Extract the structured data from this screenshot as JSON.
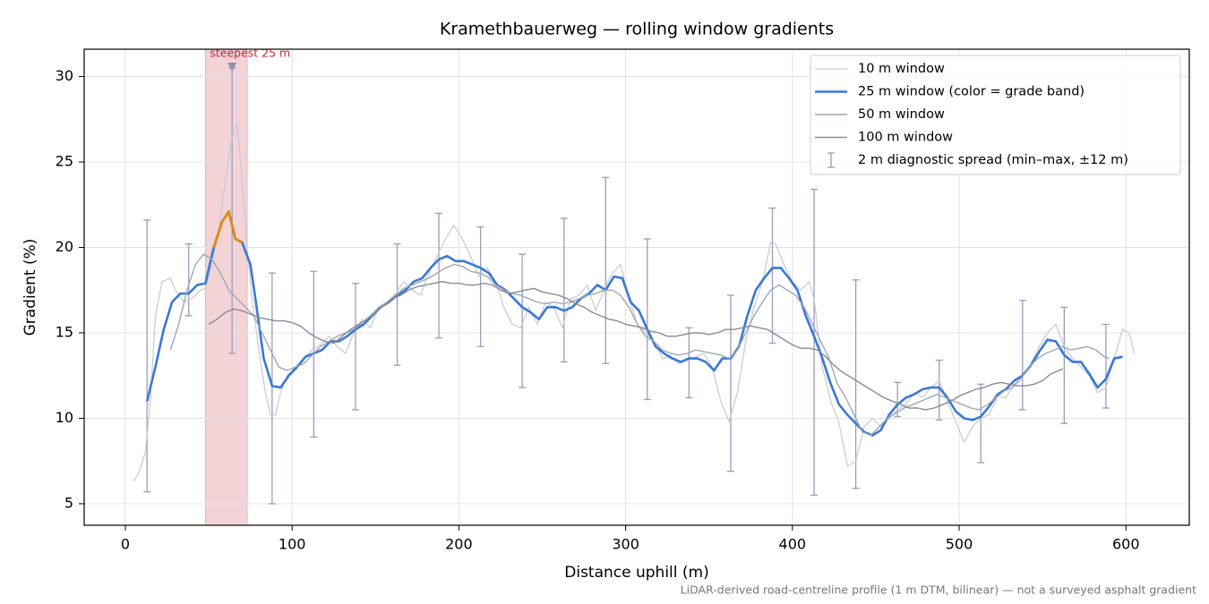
{
  "chart_data": {
    "type": "line",
    "title": "Kramethbauerweg — rolling window gradients",
    "x_label": "Distance uphill (m)",
    "y_label": "Gradient (%)",
    "footnote": "LiDAR-derived road-centreline profile (1 m DTM, bilinear) — not a surveyed asphalt gradient",
    "xlim": [
      -24.7,
      638
    ],
    "ylim": [
      3.74,
      31.6
    ],
    "xticks": [
      0,
      100,
      200,
      300,
      400,
      500,
      600
    ],
    "yticks": [
      5,
      10,
      15,
      20,
      25,
      30
    ],
    "grid": true,
    "legend": "upper right",
    "highlight": {
      "from": 48,
      "to": 73,
      "color": "#f3d3d6",
      "label": "steepest 25 m",
      "x": 64,
      "y": 30.5,
      "label_color": "#c0283c"
    },
    "series": [
      {
        "name": "10 m window",
        "color": "#c5cad3",
        "width": 1.2,
        "x": [
          5,
          8,
          12,
          15,
          18,
          22,
          27,
          30,
          35,
          40,
          45,
          48,
          52,
          56,
          60,
          64,
          67,
          70,
          73,
          76,
          80,
          84,
          87,
          90,
          93,
          97,
          102,
          107,
          112,
          117,
          122,
          127,
          132,
          137,
          142,
          147,
          152,
          157,
          162,
          167,
          172,
          177,
          182,
          187,
          192,
          197,
          202,
          207,
          212,
          217,
          222,
          227,
          232,
          237,
          242,
          247,
          252,
          257,
          262,
          267,
          272,
          277,
          282,
          287,
          292,
          297,
          302,
          307,
          312,
          317,
          322,
          327,
          332,
          337,
          342,
          347,
          352,
          357,
          362,
          367,
          372,
          377,
          382,
          387,
          390,
          395,
          400,
          405,
          410,
          413,
          418,
          423,
          428,
          433,
          438,
          443,
          448,
          453,
          458,
          463,
          468,
          473,
          478,
          483,
          488,
          493,
          498,
          503,
          508,
          513,
          518,
          523,
          528,
          533,
          538,
          543,
          548,
          553,
          558,
          563,
          568,
          573,
          578,
          583,
          588,
          593,
          598,
          602,
          605
        ],
        "values": [
          6.3,
          6.8,
          8,
          11,
          16,
          18,
          18.2,
          17.5,
          16.8,
          17,
          17.5,
          17.6,
          19,
          21,
          24,
          26.5,
          27.2,
          24,
          20,
          17,
          14,
          11.5,
          10.2,
          10.2,
          11.5,
          12.5,
          13,
          13.5,
          14,
          14.3,
          14.8,
          14.2,
          13.8,
          15,
          15.8,
          15.3,
          16.5,
          16.8,
          17.3,
          18,
          17.5,
          17.2,
          18.5,
          19.5,
          20.5,
          21.3,
          20.5,
          19.5,
          18.3,
          18.8,
          18,
          16.5,
          15.5,
          15.3,
          16.5,
          15.5,
          16.8,
          16.5,
          15.3,
          17,
          17.2,
          17.8,
          16.3,
          17.5,
          18.5,
          19,
          17,
          15.5,
          15,
          14.5,
          13.5,
          13.6,
          13.2,
          13.4,
          13.6,
          13.8,
          13,
          11,
          9.8,
          11.5,
          14.5,
          16.5,
          18,
          20.3,
          20.2,
          19,
          18,
          17.5,
          18,
          17,
          13,
          11,
          9.7,
          7.2,
          7.5,
          9.5,
          10,
          9.5,
          10,
          10.5,
          10.8,
          11.5,
          11.2,
          11.8,
          12.2,
          11,
          9.8,
          8.6,
          9.5,
          10,
          10.2,
          11.3,
          11.2,
          12,
          12.4,
          13.2,
          14.2,
          15,
          15.5,
          14.2,
          13.5,
          13,
          12.5,
          11.5,
          11.8,
          13.5,
          15.2,
          15,
          13.8
        ]
      },
      {
        "name": "25 m window (color = grade band)",
        "color": "#3a78d4",
        "width": 2.6,
        "x": [
          13,
          18,
          23,
          28,
          33,
          38,
          43,
          48,
          53,
          58,
          62,
          66,
          70,
          75,
          78,
          83,
          88,
          93,
          98,
          103,
          108,
          113,
          118,
          123,
          128,
          133,
          138,
          143,
          148,
          153,
          158,
          163,
          168,
          173,
          178,
          183,
          188,
          193,
          198,
          203,
          208,
          213,
          218,
          223,
          228,
          233,
          238,
          243,
          248,
          253,
          258,
          263,
          268,
          273,
          278,
          283,
          288,
          293,
          298,
          303,
          308,
          313,
          318,
          323,
          328,
          333,
          338,
          343,
          348,
          353,
          358,
          363,
          368,
          373,
          378,
          383,
          388,
          393,
          398,
          403,
          408,
          413,
          418,
          423,
          428,
          433,
          438,
          443,
          448,
          453,
          458,
          463,
          468,
          473,
          478,
          483,
          488,
          493,
          498,
          503,
          508,
          513,
          518,
          523,
          528,
          533,
          538,
          543,
          548,
          553,
          558,
          563,
          568,
          573,
          578,
          583,
          588,
          593,
          598
        ],
        "values": [
          11,
          13,
          15.2,
          16.8,
          17.3,
          17.3,
          17.8,
          17.9,
          20,
          21.5,
          22.1,
          20.5,
          20.3,
          19,
          17,
          13.5,
          11.9,
          11.8,
          12.5,
          13,
          13.6,
          13.8,
          14,
          14.5,
          14.5,
          14.8,
          15.2,
          15.5,
          16,
          16.5,
          16.8,
          17.2,
          17.5,
          18,
          18.2,
          18.8,
          19.3,
          19.5,
          19.2,
          19.2,
          19,
          18.8,
          18.5,
          17.8,
          17.5,
          17,
          16.5,
          16.2,
          15.8,
          16.5,
          16.5,
          16.3,
          16.5,
          17,
          17.3,
          17.8,
          17.5,
          18.3,
          18.2,
          16.8,
          16.3,
          15.2,
          14.2,
          13.8,
          13.5,
          13.3,
          13.5,
          13.5,
          13.3,
          12.8,
          13.5,
          13.5,
          14.2,
          16,
          17.5,
          18.2,
          18.8,
          18.8,
          18.2,
          17.5,
          16,
          14.8,
          13.5,
          12,
          10.8,
          10.2,
          9.7,
          9.2,
          9,
          9.3,
          10.2,
          10.8,
          11.2,
          11.4,
          11.7,
          11.8,
          11.8,
          11.2,
          10.4,
          10,
          9.9,
          10.1,
          10.7,
          11.4,
          11.7,
          12.2,
          12.5,
          13.1,
          13.9,
          14.6,
          14.5,
          13.7,
          13.3,
          13.3,
          12.6,
          11.8,
          12.3,
          13.5,
          13.6
        ],
        "colors": [
          "#3a78d4",
          "#3a78d4",
          "#3a78d4",
          "#3a78d4",
          "#3a78d4",
          "#3a78d4",
          "#3a78d4",
          "#3a78d4",
          "#e08b00",
          "#e08b00",
          "#e08b00",
          "#e08b00",
          "#e08b00",
          "#3a78d4",
          "#3a78d4",
          "#3a78d4",
          "#3a78d4",
          "#3a78d4",
          "#3a78d4",
          "#3a78d4",
          "#3a78d4",
          "#3a78d4",
          "#3a78d4",
          "#3a78d4",
          "#3a78d4",
          "#3a78d4",
          "#3a78d4",
          "#3a78d4",
          "#3a78d4",
          "#3a78d4",
          "#3a78d4",
          "#3a78d4",
          "#3a78d4",
          "#3a78d4",
          "#3a78d4",
          "#3a78d4",
          "#3a78d4",
          "#3a78d4",
          "#3a78d4",
          "#3a78d4",
          "#3a78d4",
          "#3a78d4",
          "#3a78d4",
          "#3a78d4",
          "#3a78d4",
          "#3a78d4",
          "#3a78d4",
          "#3a78d4",
          "#3a78d4",
          "#3a78d4",
          "#3a78d4",
          "#3a78d4",
          "#3a78d4",
          "#3a78d4",
          "#3a78d4",
          "#3a78d4",
          "#3a78d4",
          "#3a78d4",
          "#3a78d4",
          "#3a78d4",
          "#3a78d4",
          "#3a78d4",
          "#3a78d4",
          "#3a78d4",
          "#3a78d4",
          "#3a78d4",
          "#3a78d4",
          "#3a78d4",
          "#3a78d4",
          "#3a78d4",
          "#3a78d4",
          "#3a78d4",
          "#3a78d4",
          "#3a78d4",
          "#3a78d4",
          "#3a78d4",
          "#3a78d4",
          "#3a78d4",
          "#3a78d4",
          "#3a78d4",
          "#3a78d4",
          "#3a78d4",
          "#3a78d4",
          "#3a78d4",
          "#3a78d4",
          "#3a78d4",
          "#3a78d4",
          "#3a78d4",
          "#3a78d4",
          "#3a78d4",
          "#3a78d4",
          "#3a78d4",
          "#3a78d4",
          "#3a78d4",
          "#3a78d4",
          "#3a78d4",
          "#3a78d4",
          "#3a78d4",
          "#3a78d4",
          "#3a78d4",
          "#3a78d4",
          "#3a78d4",
          "#3a78d4",
          "#3a78d4",
          "#3a78d4",
          "#3a78d4",
          "#3a78d4",
          "#3a78d4",
          "#3a78d4",
          "#3a78d4",
          "#3a78d4",
          "#3a78d4",
          "#3a78d4",
          "#3a78d4",
          "#3a78d4",
          "#3a78d4",
          "#3a78d4",
          "#3a78d4",
          "#3a78d4"
        ]
      },
      {
        "name": "50 m window",
        "color": "#a0a6b4",
        "width": 1.4,
        "x": [
          27,
          32,
          37,
          42,
          47,
          52,
          57,
          62,
          67,
          72,
          77,
          82,
          87,
          92,
          97,
          102,
          107,
          112,
          117,
          122,
          127,
          132,
          137,
          142,
          147,
          152,
          157,
          162,
          167,
          172,
          177,
          182,
          187,
          192,
          197,
          202,
          207,
          212,
          217,
          222,
          227,
          232,
          237,
          242,
          247,
          252,
          257,
          262,
          267,
          272,
          277,
          282,
          287,
          292,
          297,
          302,
          307,
          312,
          317,
          322,
          327,
          332,
          337,
          342,
          347,
          352,
          357,
          362,
          367,
          372,
          377,
          382,
          387,
          392,
          397,
          402,
          407,
          412,
          417,
          422,
          427,
          432,
          437,
          442,
          447,
          452,
          457,
          462,
          467,
          472,
          477,
          482,
          487,
          492,
          497,
          502,
          507,
          512,
          517,
          522,
          527,
          532,
          537,
          542,
          547,
          552,
          557,
          562,
          567,
          572,
          577,
          582,
          587,
          590
        ],
        "values": [
          14,
          15.5,
          17.5,
          19,
          19.6,
          19.3,
          18.5,
          17.5,
          17,
          16.5,
          16,
          15,
          14,
          13,
          12.8,
          13,
          13.2,
          13.7,
          14.2,
          14.5,
          14.8,
          15,
          15.2,
          15.6,
          16,
          16.5,
          16.8,
          17.2,
          17.6,
          17.8,
          18,
          18.2,
          18.5,
          18.8,
          19,
          18.9,
          18.6,
          18.5,
          18.3,
          17.8,
          17.5,
          17.3,
          17.2,
          17,
          16.8,
          16.7,
          16.8,
          16.7,
          16.8,
          17,
          17.2,
          17.3,
          17.5,
          17.5,
          17.2,
          16.5,
          15.5,
          14.8,
          14.5,
          14,
          13.8,
          13.7,
          13.8,
          14,
          13.9,
          13.8,
          13.7,
          13.5,
          14,
          15,
          16,
          16.8,
          17.5,
          17.8,
          17.5,
          17.2,
          16.5,
          15.5,
          14.5,
          13.5,
          12,
          11.2,
          10.2,
          9.2,
          9,
          9.5,
          10,
          10.3,
          10.6,
          10.8,
          11,
          11.2,
          11.4,
          11.2,
          11,
          10.8,
          10.6,
          10.5,
          10.8,
          11.2,
          11.6,
          11.8,
          12.3,
          13,
          13.5,
          13.8,
          14,
          14.2,
          14,
          14.1,
          14.2,
          14,
          13.6,
          13.5
        ]
      },
      {
        "name": "100 m window",
        "color": "#868b98",
        "width": 1.4,
        "x": [
          50,
          55,
          60,
          65,
          70,
          75,
          80,
          85,
          90,
          95,
          100,
          105,
          110,
          115,
          120,
          125,
          130,
          135,
          140,
          145,
          150,
          155,
          160,
          165,
          170,
          175,
          180,
          185,
          190,
          195,
          200,
          205,
          210,
          215,
          220,
          225,
          230,
          235,
          240,
          245,
          250,
          255,
          260,
          265,
          270,
          275,
          280,
          285,
          290,
          295,
          300,
          305,
          310,
          315,
          320,
          325,
          330,
          335,
          340,
          345,
          350,
          355,
          360,
          365,
          370,
          375,
          380,
          385,
          390,
          395,
          400,
          405,
          410,
          415,
          420,
          425,
          430,
          435,
          440,
          445,
          450,
          455,
          460,
          465,
          470,
          475,
          480,
          485,
          490,
          495,
          500,
          505,
          510,
          515,
          520,
          525,
          530,
          535,
          540,
          545,
          550,
          555,
          560,
          562
        ],
        "values": [
          15.5,
          15.8,
          16.2,
          16.4,
          16.3,
          16.1,
          15.9,
          15.8,
          15.7,
          15.7,
          15.6,
          15.4,
          15,
          14.7,
          14.5,
          14.4,
          14.8,
          15.2,
          15.5,
          15.8,
          16.2,
          16.6,
          17,
          17.2,
          17.5,
          17.7,
          17.8,
          17.9,
          18,
          17.9,
          17.9,
          17.8,
          17.8,
          17.9,
          17.8,
          17.5,
          17.3,
          17.4,
          17.5,
          17.6,
          17.4,
          17.3,
          17.2,
          17,
          16.7,
          16.5,
          16.2,
          16,
          15.8,
          15.7,
          15.5,
          15.4,
          15.3,
          15.1,
          15,
          14.8,
          14.8,
          14.9,
          15,
          15,
          14.9,
          15,
          15.2,
          15.2,
          15.3,
          15.4,
          15.3,
          15.2,
          14.9,
          14.6,
          14.3,
          14.1,
          14.1,
          14,
          13.6,
          13.1,
          12.7,
          12.4,
          12.1,
          11.8,
          11.5,
          11.2,
          11,
          10.8,
          10.6,
          10.6,
          10.5,
          10.6,
          10.8,
          11,
          11.3,
          11.5,
          11.7,
          11.8,
          12,
          12.1,
          12,
          11.9,
          11.9,
          12,
          12.2,
          12.6,
          12.8,
          12.9
        ]
      }
    ],
    "errorbars": {
      "name": "2 m diagnostic spread (min–max, ±12 m)",
      "color": "#9b9bc0",
      "x": [
        13,
        38,
        64,
        88,
        113,
        138,
        163,
        188,
        213,
        238,
        263,
        288,
        313,
        338,
        363,
        388,
        413,
        438,
        463,
        488,
        513,
        538,
        563,
        588
      ],
      "low": [
        5.7,
        16,
        13.8,
        5,
        8.9,
        10.5,
        13.1,
        14.7,
        14.2,
        11.8,
        13.3,
        13.2,
        11.1,
        11.2,
        6.9,
        14.4,
        5.5,
        5.9,
        10.1,
        9.9,
        7.4,
        10.5,
        9.7,
        10.6
      ],
      "high": [
        21.6,
        20.2,
        30.5,
        18.5,
        18.6,
        17.9,
        20.2,
        22,
        21.2,
        19.6,
        21.7,
        24.1,
        20.5,
        15.3,
        17.2,
        22.3,
        23.4,
        18.1,
        12.1,
        13.4,
        12,
        16.9,
        16.5,
        15.5
      ]
    }
  }
}
